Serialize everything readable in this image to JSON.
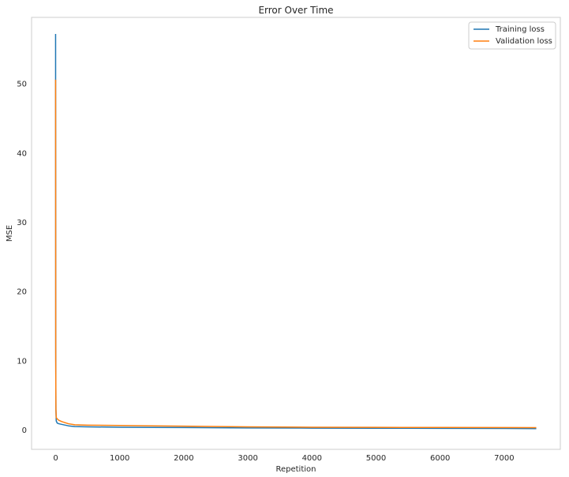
{
  "chart_data": {
    "type": "line",
    "title": "Error Over Time",
    "xlabel": "Repetition",
    "ylabel": "MSE",
    "xlim": [
      -375,
      7875
    ],
    "ylim": [
      -2.8,
      59.6
    ],
    "xticks": [
      0,
      1000,
      2000,
      3000,
      4000,
      5000,
      6000,
      7000
    ],
    "yticks": [
      0,
      10,
      20,
      30,
      40,
      50
    ],
    "grid": false,
    "legend": "top-right",
    "series": [
      {
        "name": "Training loss",
        "color": "#1f77b4",
        "x": [
          0,
          2,
          5,
          10,
          25,
          50,
          100,
          200,
          300,
          500,
          1000,
          1500,
          2000,
          3000,
          4000,
          5000,
          6000,
          7000,
          7500
        ],
        "y": [
          57.2,
          12.0,
          3.0,
          1.3,
          1.0,
          0.9,
          0.8,
          0.6,
          0.5,
          0.45,
          0.4,
          0.37,
          0.35,
          0.3,
          0.27,
          0.25,
          0.24,
          0.22,
          0.2
        ]
      },
      {
        "name": "Validation loss",
        "color": "#ff7f0e",
        "x": [
          0,
          2,
          5,
          10,
          25,
          50,
          100,
          200,
          300,
          500,
          1000,
          1500,
          2000,
          3000,
          4000,
          5000,
          6000,
          7000,
          7500
        ],
        "y": [
          50.6,
          10.0,
          3.0,
          1.8,
          1.6,
          1.4,
          1.2,
          0.9,
          0.75,
          0.7,
          0.65,
          0.6,
          0.55,
          0.45,
          0.4,
          0.38,
          0.36,
          0.35,
          0.34
        ]
      }
    ]
  }
}
